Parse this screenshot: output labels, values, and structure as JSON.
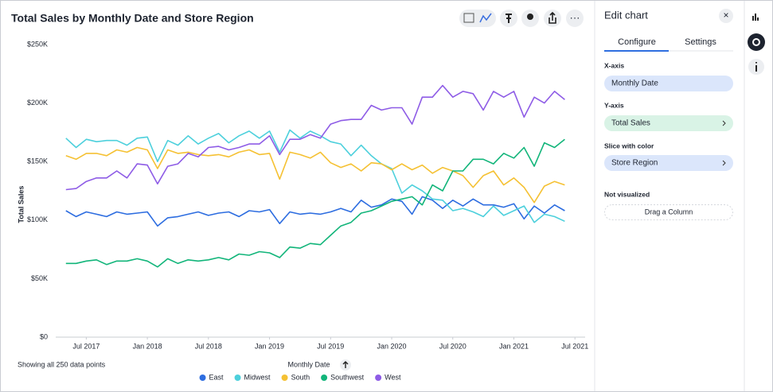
{
  "chart_data": {
    "type": "line",
    "title": "Total Sales by Monthly Date and Store Region",
    "x_label": "Monthly Date",
    "y_label": "Total Sales",
    "x": [
      "2017-05",
      "2017-06",
      "2017-07",
      "2017-08",
      "2017-09",
      "2017-10",
      "2017-11",
      "2017-12",
      "2018-01",
      "2018-02",
      "2018-03",
      "2018-04",
      "2018-05",
      "2018-06",
      "2018-07",
      "2018-08",
      "2018-09",
      "2018-10",
      "2018-11",
      "2018-12",
      "2019-01",
      "2019-02",
      "2019-03",
      "2019-04",
      "2019-05",
      "2019-06",
      "2019-07",
      "2019-08",
      "2019-09",
      "2019-10",
      "2019-11",
      "2019-12",
      "2020-01",
      "2020-02",
      "2020-03",
      "2020-04",
      "2020-05",
      "2020-06",
      "2020-07",
      "2020-08",
      "2020-09",
      "2020-10",
      "2020-11",
      "2020-12",
      "2021-01",
      "2021-02",
      "2021-03",
      "2021-04",
      "2021-05",
      "2021-06"
    ],
    "xlim": [
      "2017-04",
      "2021-08"
    ],
    "xticks": [
      {
        "value": "2017-07",
        "label": "Jul 2017"
      },
      {
        "value": "2018-01",
        "label": "Jan 2018"
      },
      {
        "value": "2018-07",
        "label": "Jul 2018"
      },
      {
        "value": "2019-01",
        "label": "Jan 2019"
      },
      {
        "value": "2019-07",
        "label": "Jul 2019"
      },
      {
        "value": "2020-01",
        "label": "Jan 2020"
      },
      {
        "value": "2020-07",
        "label": "Jul 2020"
      },
      {
        "value": "2021-01",
        "label": "Jan 2021"
      },
      {
        "value": "2021-07",
        "label": "Jul 2021"
      }
    ],
    "ylim": [
      0,
      250000
    ],
    "yticks": [
      {
        "value": 0,
        "label": "$0"
      },
      {
        "value": 50000,
        "label": "$50K"
      },
      {
        "value": 100000,
        "label": "$100K"
      },
      {
        "value": 150000,
        "label": "$150K"
      },
      {
        "value": 200000,
        "label": "$200K"
      },
      {
        "value": 250000,
        "label": "$250K"
      }
    ],
    "grid": false,
    "series": [
      {
        "name": "East",
        "color": "#2d6de0",
        "values": [
          108000,
          103000,
          107000,
          105000,
          103000,
          107000,
          105000,
          106000,
          107000,
          95000,
          102000,
          103000,
          105000,
          107000,
          104000,
          106000,
          107000,
          103000,
          108000,
          107000,
          109000,
          97000,
          107000,
          105000,
          106000,
          105000,
          107000,
          110000,
          107000,
          117000,
          111000,
          113000,
          118000,
          116000,
          105000,
          120000,
          117000,
          110000,
          117000,
          112000,
          118000,
          113000,
          113000,
          111000,
          114000,
          101000,
          112000,
          106000,
          113000,
          108000
        ]
      },
      {
        "name": "Midwest",
        "color": "#4dd0dc",
        "values": [
          170000,
          162000,
          169000,
          167000,
          168000,
          168000,
          164000,
          170000,
          171000,
          150000,
          168000,
          164000,
          172000,
          165000,
          170000,
          174000,
          166000,
          172000,
          176000,
          170000,
          176000,
          158000,
          177000,
          170000,
          176000,
          172000,
          167000,
          165000,
          155000,
          164000,
          155000,
          148000,
          144000,
          123000,
          130000,
          125000,
          118000,
          117000,
          108000,
          110000,
          107000,
          103000,
          112000,
          104000,
          108000,
          112000,
          98000,
          105000,
          103000,
          99000
        ]
      },
      {
        "name": "South",
        "color": "#f5c133",
        "values": [
          155000,
          152000,
          157000,
          157000,
          155000,
          160000,
          158000,
          162000,
          160000,
          144000,
          160000,
          157000,
          158000,
          156000,
          155000,
          156000,
          154000,
          158000,
          160000,
          156000,
          157000,
          135000,
          158000,
          156000,
          153000,
          158000,
          149000,
          145000,
          148000,
          142000,
          149000,
          148000,
          143000,
          148000,
          143000,
          147000,
          140000,
          145000,
          142000,
          138000,
          128000,
          138000,
          142000,
          130000,
          136000,
          128000,
          115000,
          129000,
          133000,
          130000
        ]
      },
      {
        "name": "Southwest",
        "color": "#12b57a",
        "values": [
          63000,
          63000,
          65000,
          66000,
          62000,
          65000,
          65000,
          67000,
          65000,
          60000,
          67000,
          63000,
          66000,
          65000,
          66000,
          68000,
          66000,
          71000,
          70000,
          73000,
          72000,
          68000,
          77000,
          76000,
          80000,
          79000,
          87000,
          95000,
          98000,
          106000,
          108000,
          112000,
          116000,
          118000,
          120000,
          113000,
          130000,
          125000,
          142000,
          142000,
          152000,
          152000,
          148000,
          157000,
          153000,
          162000,
          146000,
          166000,
          162000,
          169000
        ]
      },
      {
        "name": "West",
        "color": "#8e5ce6",
        "values": [
          126000,
          127000,
          133000,
          136000,
          136000,
          142000,
          136000,
          148000,
          147000,
          131000,
          146000,
          148000,
          157000,
          154000,
          162000,
          163000,
          160000,
          162000,
          165000,
          165000,
          172000,
          156000,
          169000,
          169000,
          173000,
          170000,
          182000,
          185000,
          186000,
          186000,
          198000,
          194000,
          196000,
          196000,
          182000,
          205000,
          205000,
          215000,
          205000,
          210000,
          208000,
          194000,
          210000,
          205000,
          210000,
          188000,
          205000,
          200000,
          210000,
          203000
        ]
      }
    ]
  },
  "footer": {
    "note": "Showing all 250 data points"
  },
  "toolbar": {
    "more": "···"
  },
  "panel": {
    "title": "Edit chart",
    "close": "×",
    "tabs": [
      "Configure",
      "Settings"
    ],
    "sections": [
      {
        "label": "X-axis",
        "item": "Monthly Date"
      },
      {
        "label": "Y-axis",
        "item": "Total Sales"
      },
      {
        "label": "Slice with color",
        "item": "Store Region"
      },
      {
        "label": "Not visualized",
        "item": "Drag a Column"
      }
    ]
  }
}
